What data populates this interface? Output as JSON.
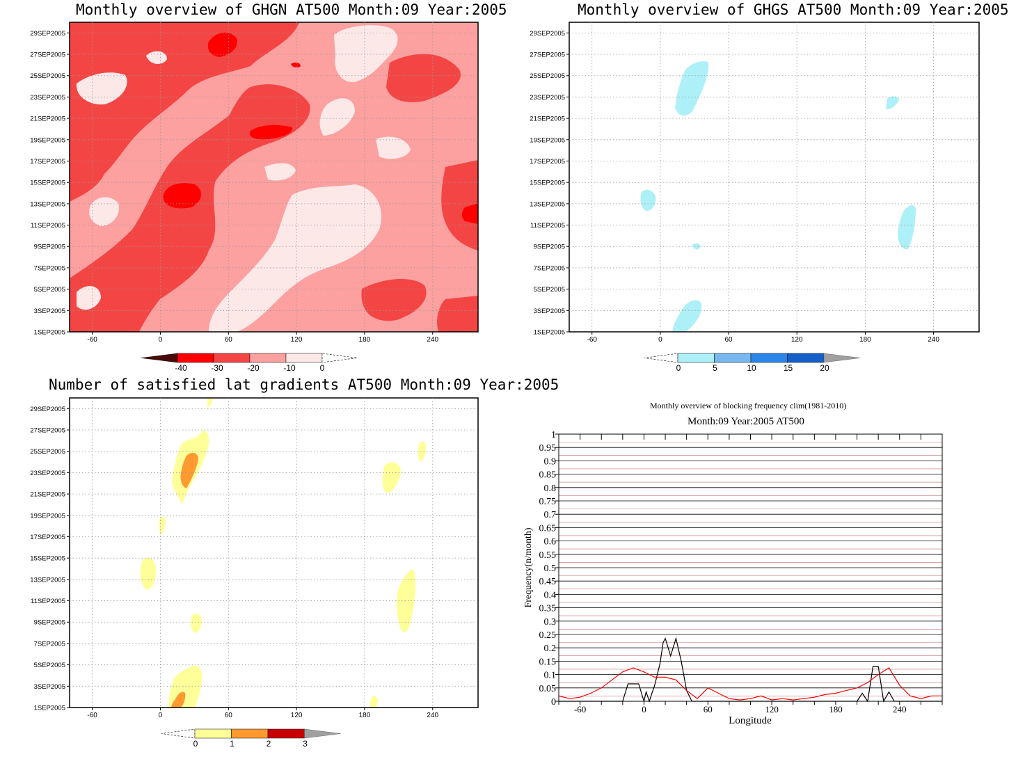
{
  "chart_data": [
    {
      "type": "heatmap",
      "title": "Monthly overview of GHGN AT500 Month:09 Year:2005",
      "y_ticks": [
        "1SEP2005",
        "3SEP2005",
        "5SEP2005",
        "7SEP2005",
        "9SEP2005",
        "11SEP2005",
        "13SEP2005",
        "15SEP2005",
        "17SEP2005",
        "19SEP2005",
        "21SEP2005",
        "23SEP2005",
        "25SEP2005",
        "27SEP2005",
        "29SEP2005"
      ],
      "x_ticks": [
        -60,
        0,
        60,
        120,
        180,
        240
      ],
      "xlim": [
        -80,
        280
      ],
      "colorbar": {
        "labels": [
          -40,
          -30,
          -20,
          -10,
          0
        ],
        "colors": [
          "#4a0a0a",
          "#ff0000",
          "#f44545",
          "#fca0a0",
          "#fde8e8"
        ]
      },
      "background_color": "#fca0a0"
    },
    {
      "type": "heatmap",
      "title": "Monthly overview of GHGS AT500 Month:09 Year:2005",
      "y_ticks": [
        "1SEP2005",
        "3SEP2005",
        "5SEP2005",
        "7SEP2005",
        "9SEP2005",
        "11SEP2005",
        "13SEP2005",
        "15SEP2005",
        "17SEP2005",
        "19SEP2005",
        "21SEP2005",
        "23SEP2005",
        "25SEP2005",
        "27SEP2005",
        "29SEP2005"
      ],
      "x_ticks": [
        -60,
        0,
        60,
        120,
        180,
        240
      ],
      "xlim": [
        -80,
        280
      ],
      "colorbar": {
        "labels": [
          0,
          5,
          10,
          15,
          20
        ],
        "colors": [
          "#aef0f8",
          "#78b8f0",
          "#2a86e8",
          "#1460c8",
          "#a0a0a0"
        ]
      }
    },
    {
      "type": "heatmap",
      "title": "Number of satisfied lat gradients AT500 Month:09 Year:2005",
      "y_ticks": [
        "1SEP2005",
        "3SEP2005",
        "5SEP2005",
        "7SEP2005",
        "9SEP2005",
        "11SEP2005",
        "13SEP2005",
        "15SEP2005",
        "17SEP2005",
        "19SEP2005",
        "21SEP2005",
        "23SEP2005",
        "25SEP2005",
        "27SEP2005",
        "29SEP2005"
      ],
      "x_ticks": [
        -60,
        0,
        60,
        120,
        180,
        240
      ],
      "xlim": [
        -80,
        280
      ],
      "colorbar": {
        "labels": [
          0,
          1,
          2,
          3
        ],
        "colors": [
          "#ffff9a",
          "#ff9a30",
          "#c80000",
          "#a0a0a0"
        ]
      }
    },
    {
      "type": "line",
      "title": "Monthly overview of blocking frequency clim(1981-2010)",
      "subtitle": "Month:09 Year:2005  AT500",
      "xlabel": "Longitude",
      "ylabel": "Frequency(n/month)",
      "xlim": [
        -80,
        280
      ],
      "ylim": [
        0,
        1
      ],
      "x_ticks": [
        -60,
        0,
        60,
        120,
        180,
        240
      ],
      "y_ticks": [
        "0",
        "0.05",
        "0.1",
        "0.15",
        "0.2",
        "0.25",
        "0.3",
        "0.35",
        "0.4",
        "0.45",
        "0.5",
        "0.55",
        "0.6",
        "0.65",
        "0.7",
        "0.75",
        "0.8",
        "0.85",
        "0.9",
        "0.95",
        "1"
      ],
      "series": [
        {
          "color": "#000000",
          "x": [
            -80,
            -20,
            -15,
            -5,
            0,
            2,
            5,
            10,
            15,
            18,
            20,
            25,
            30,
            35,
            40,
            45,
            200,
            205,
            210,
            215,
            220,
            225,
            230,
            235,
            280
          ],
          "y": [
            0,
            0,
            0.065,
            0.065,
            0,
            0.035,
            0,
            0.06,
            0.14,
            0.22,
            0.235,
            0.17,
            0.235,
            0.15,
            0.04,
            0,
            0,
            0.03,
            0,
            0.13,
            0.13,
            0,
            0.035,
            0,
            0
          ]
        },
        {
          "color": "#ff0000",
          "x": [
            -80,
            -70,
            -60,
            -50,
            -40,
            -30,
            -20,
            -10,
            0,
            10,
            20,
            30,
            40,
            50,
            60,
            70,
            80,
            90,
            100,
            110,
            120,
            130,
            140,
            150,
            160,
            170,
            180,
            190,
            200,
            210,
            220,
            230,
            240,
            250,
            260,
            270,
            280
          ],
          "y": [
            0.02,
            0.01,
            0.015,
            0.03,
            0.05,
            0.08,
            0.11,
            0.125,
            0.11,
            0.09,
            0.09,
            0.08,
            0.04,
            0.01,
            0.05,
            0.03,
            0.01,
            0.005,
            0.01,
            0.02,
            0.005,
            0.01,
            0.005,
            0.01,
            0.015,
            0.025,
            0.03,
            0.04,
            0.05,
            0.07,
            0.1,
            0.125,
            0.06,
            0.02,
            0.01,
            0.02,
            0.02
          ]
        }
      ]
    }
  ]
}
